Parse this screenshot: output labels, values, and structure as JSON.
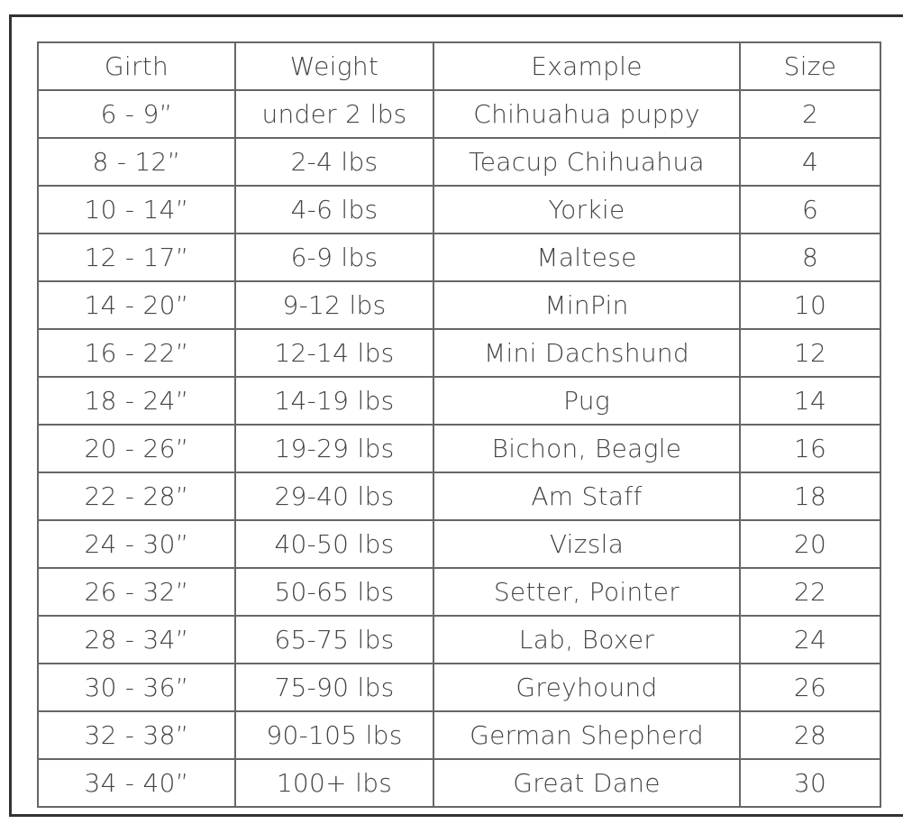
{
  "table": {
    "headers": [
      "Girth",
      "Weight",
      "Example",
      "Size"
    ],
    "rows": [
      [
        "6 - 9”",
        "under 2 lbs",
        "Chihuahua puppy",
        "2"
      ],
      [
        "8 - 12”",
        "2-4 lbs",
        "Teacup Chihuahua",
        "4"
      ],
      [
        "10 - 14”",
        "4-6 lbs",
        "Yorkie",
        "6"
      ],
      [
        "12 - 17”",
        "6-9 lbs",
        "Maltese",
        "8"
      ],
      [
        "14 - 20”",
        "9-12 lbs",
        "MinPin",
        "10"
      ],
      [
        "16 - 22”",
        "12-14 lbs",
        "Mini Dachshund",
        "12"
      ],
      [
        "18 - 24”",
        "14-19 lbs",
        "Pug",
        "14"
      ],
      [
        "20 - 26”",
        "19-29 lbs",
        "Bichon, Beagle",
        "16"
      ],
      [
        "22 - 28”",
        "29-40 lbs",
        "Am Staff",
        "18"
      ],
      [
        "24 - 30”",
        "40-50 lbs",
        "Vizsla",
        "20"
      ],
      [
        "26 - 32”",
        "50-65 lbs",
        "Setter, Pointer",
        "22"
      ],
      [
        "28 - 34”",
        "65-75 lbs",
        "Lab, Boxer",
        "24"
      ],
      [
        "30 - 36”",
        "75-90 lbs",
        "Greyhound",
        "26"
      ],
      [
        "32 - 38”",
        "90-105 lbs",
        "German Shepherd",
        "28"
      ],
      [
        "34 - 40”",
        "100+ lbs",
        "Great Dane",
        "30"
      ]
    ]
  }
}
